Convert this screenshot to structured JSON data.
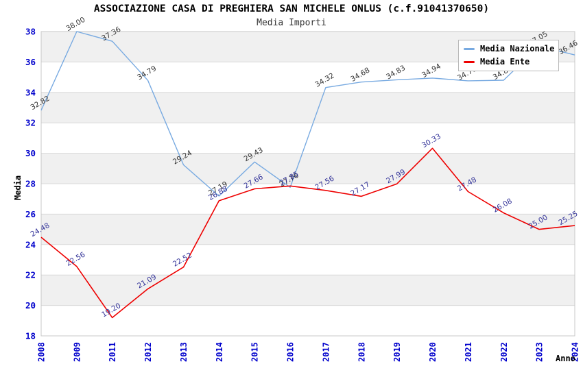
{
  "chart_data": {
    "type": "line",
    "title": "ASSOCIAZIONE CASA DI PREGHIERA SAN MICHELE ONLUS (c.f.91041370650)",
    "subtitle": "Media Importi",
    "xlabel": "Anno",
    "ylabel": "Media",
    "categories": [
      "2008",
      "2009",
      "2011",
      "2012",
      "2013",
      "2014",
      "2015",
      "2016",
      "2017",
      "2018",
      "2019",
      "2020",
      "2021",
      "2022",
      "2023",
      "2024"
    ],
    "series": [
      {
        "name": "Media Nazionale",
        "color": "#78aae1",
        "label_color": "#333333",
        "values": [
          32.82,
          38.0,
          37.36,
          34.79,
          29.24,
          27.19,
          29.43,
          27.76,
          34.32,
          34.68,
          34.83,
          34.94,
          34.76,
          34.8,
          37.05,
          36.46
        ]
      },
      {
        "name": "Media Ente",
        "color": "#ee0000",
        "label_color": "#333399",
        "values": [
          24.48,
          22.56,
          19.2,
          21.09,
          22.52,
          26.88,
          27.66,
          27.85,
          27.56,
          27.17,
          27.99,
          30.33,
          27.48,
          26.08,
          25.0,
          25.25
        ]
      }
    ],
    "ylim": [
      18,
      38
    ],
    "ytick_step": 2,
    "grid": true,
    "band_colors": [
      "#ffffff",
      "#f0f0f0"
    ],
    "gridline_color": "#d8d8d8",
    "plot_border_color": "#c8c8c8",
    "axis_tick_color": "#0000cc",
    "legend_position": "top-right"
  }
}
